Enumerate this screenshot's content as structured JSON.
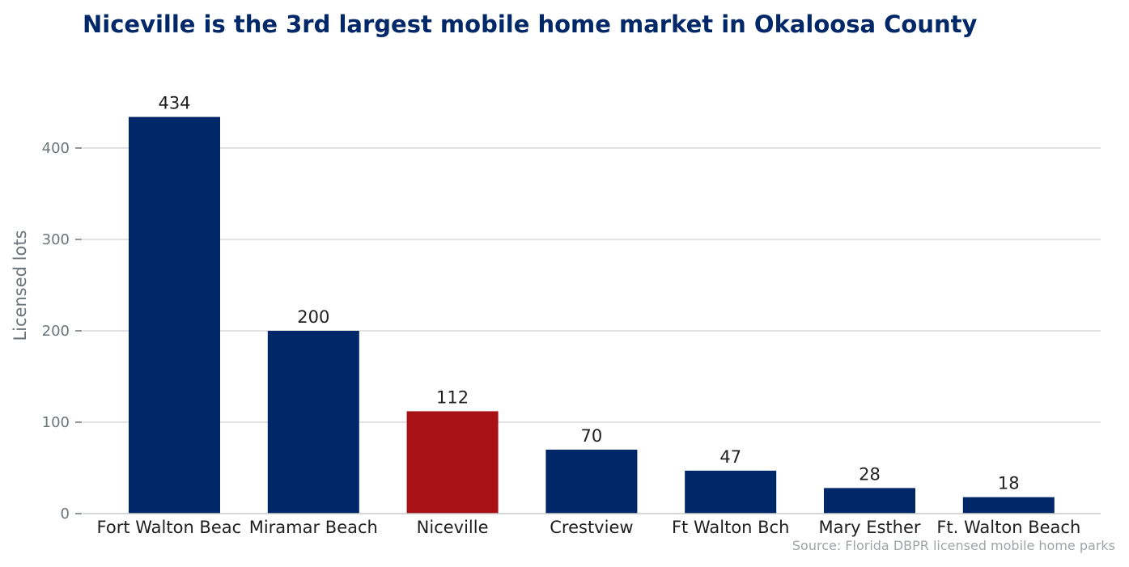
{
  "chart_data": {
    "type": "bar",
    "title": "Niceville is the 3rd largest mobile home market in Okaloosa County",
    "xlabel": "",
    "ylabel": "Licensed lots",
    "categories": [
      "Fort Walton Beach",
      "Miramar Beach",
      "Niceville",
      "Crestview",
      "Ft Walton Bch",
      "Mary Esther",
      "Ft. Walton Beach"
    ],
    "values": [
      434,
      200,
      112,
      70,
      47,
      28,
      18
    ],
    "highlight_category": "Niceville",
    "ylim": [
      0,
      470
    ],
    "yticks": [
      0,
      100,
      200,
      300,
      400
    ],
    "grid": "horizontal",
    "colors": {
      "bar": "#002868",
      "highlight": "#a81116",
      "grid": "#d9d9d9",
      "title": "#002868"
    },
    "source": "Source: Florida DBPR licensed mobile home parks"
  }
}
